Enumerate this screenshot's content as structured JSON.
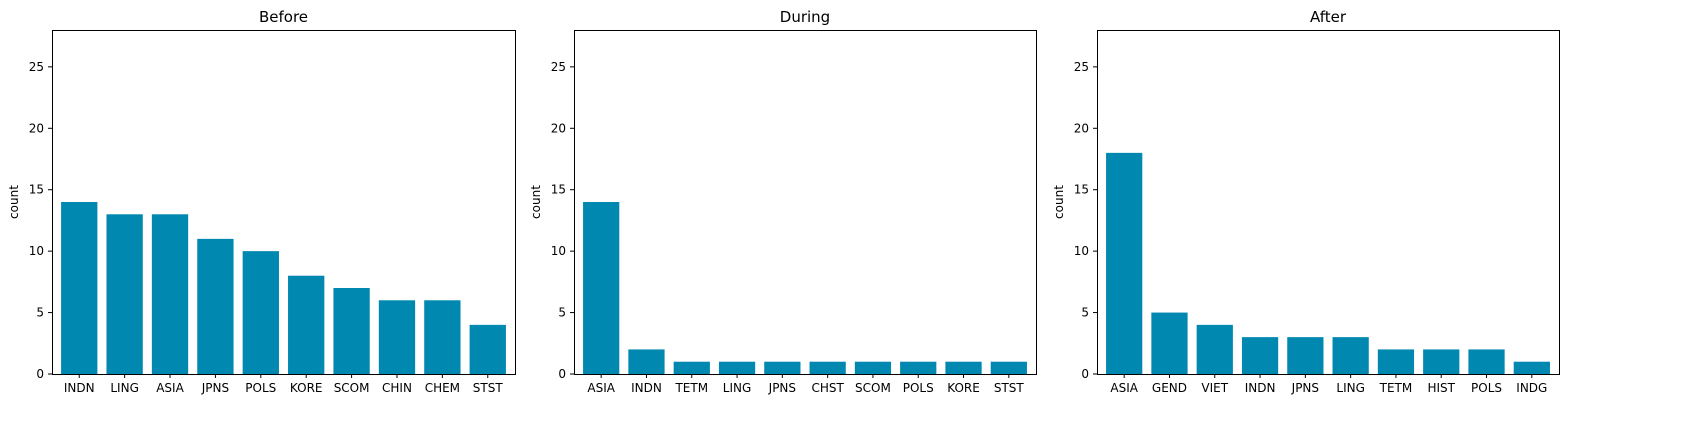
{
  "chart_data": [
    {
      "type": "bar",
      "title": "Before",
      "xlabel": "",
      "ylabel": "count",
      "ylim": [
        0,
        28
      ],
      "yticks": [
        0,
        5,
        10,
        15,
        20,
        25
      ],
      "grid": false,
      "color": "#0088B0",
      "categories": [
        "INDN",
        "LING",
        "ASIA",
        "JPNS",
        "POLS",
        "KORE",
        "SCOM",
        "CHIN",
        "CHEM",
        "STST"
      ],
      "values": [
        14,
        13,
        13,
        11,
        10,
        8,
        7,
        6,
        6,
        4
      ]
    },
    {
      "type": "bar",
      "title": "During",
      "xlabel": "",
      "ylabel": "count",
      "ylim": [
        0,
        28
      ],
      "yticks": [
        0,
        5,
        10,
        15,
        20,
        25
      ],
      "grid": false,
      "color": "#0088B0",
      "categories": [
        "ASIA",
        "INDN",
        "TETM",
        "LING",
        "JPNS",
        "CHST",
        "SCOM",
        "POLS",
        "KORE",
        "STST"
      ],
      "values": [
        14,
        2,
        1,
        1,
        1,
        1,
        1,
        1,
        1,
        1
      ]
    },
    {
      "type": "bar",
      "title": "After",
      "xlabel": "",
      "ylabel": "count",
      "ylim": [
        0,
        28
      ],
      "yticks": [
        0,
        5,
        10,
        15,
        20,
        25
      ],
      "grid": false,
      "color": "#0088B0",
      "categories": [
        "ASIA",
        "GEND",
        "VIET",
        "INDN",
        "JPNS",
        "LING",
        "TETM",
        "HIST",
        "POLS",
        "INDG"
      ],
      "values": [
        18,
        5,
        4,
        3,
        3,
        3,
        2,
        2,
        2,
        1
      ]
    }
  ]
}
